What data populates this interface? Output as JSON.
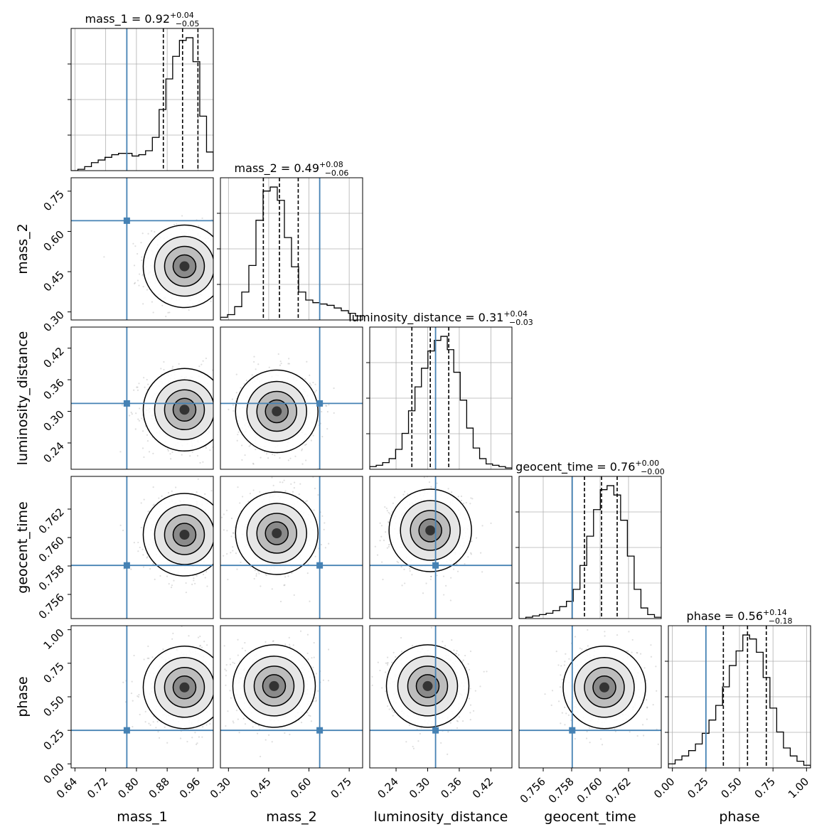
{
  "chart_data": {
    "type": "corner",
    "colors": {
      "truth": "#4682b4",
      "hist": "#000000",
      "grid": "#b0b0b0"
    },
    "parameters": [
      {
        "name": "mass_1",
        "xlabel": "mass_1",
        "title_value": "0.92",
        "title_upper": "+0.04",
        "title_lower": "−0.05",
        "range": [
          0.63,
          1.0
        ],
        "ticks": [
          0.64,
          0.72,
          0.8,
          0.88,
          0.96
        ],
        "tick_labels": [
          "0.64",
          "0.72",
          "0.80",
          "0.88",
          "0.96"
        ],
        "truth": 0.775,
        "quantiles": [
          0.87,
          0.92,
          0.96
        ],
        "hist_counts": [
          0.0,
          0.01,
          0.03,
          0.06,
          0.08,
          0.1,
          0.12,
          0.13,
          0.13,
          0.11,
          0.12,
          0.15,
          0.25,
          0.46,
          0.69,
          0.86,
          0.98,
          1.0,
          0.82,
          0.41,
          0.14
        ],
        "hist_ylim": [
          0,
          1.07
        ]
      },
      {
        "name": "mass_2",
        "xlabel": "mass_2",
        "title_value": "0.49",
        "title_upper": "+0.08",
        "title_lower": "−0.06",
        "range": [
          0.27,
          0.8
        ],
        "ticks": [
          0.3,
          0.45,
          0.6,
          0.75
        ],
        "tick_labels": [
          "0.30",
          "0.45",
          "0.60",
          "0.75"
        ],
        "truth": 0.64,
        "quantiles": [
          0.43,
          0.49,
          0.56
        ],
        "hist_counts": [
          0.02,
          0.04,
          0.1,
          0.21,
          0.41,
          0.75,
          0.97,
          1.0,
          0.9,
          0.62,
          0.4,
          0.21,
          0.15,
          0.13,
          0.12,
          0.11,
          0.09,
          0.07,
          0.05,
          0.03
        ],
        "hist_ylim": [
          0,
          1.07
        ]
      },
      {
        "name": "luminosity_distance",
        "xlabel": "luminosity_distance",
        "title_value": "0.31",
        "title_upper": "+0.04",
        "title_lower": "−0.03",
        "range": [
          0.19,
          0.46
        ],
        "ticks": [
          0.24,
          0.3,
          0.36,
          0.42
        ],
        "tick_labels": [
          "0.24",
          "0.30",
          "0.36",
          "0.42"
        ],
        "truth": 0.315,
        "quantiles": [
          0.27,
          0.305,
          0.34
        ],
        "hist_counts": [
          0.02,
          0.03,
          0.05,
          0.08,
          0.15,
          0.27,
          0.44,
          0.62,
          0.76,
          0.89,
          0.97,
          1.0,
          0.9,
          0.73,
          0.52,
          0.31,
          0.16,
          0.08,
          0.04,
          0.03,
          0.02,
          0.01
        ],
        "hist_ylim": [
          0,
          1.07
        ]
      },
      {
        "name": "geocent_time",
        "xlabel": "geocent_time",
        "title_value": "0.76",
        "title_upper": "+0.00",
        "title_lower": "−0.00",
        "range": [
          0.7543,
          0.7643
        ],
        "ticks": [
          0.756,
          0.758,
          0.76,
          0.762
        ],
        "tick_labels": [
          "0.756",
          "0.758",
          "0.760",
          "0.762"
        ],
        "truth": 0.75804,
        "quantiles": [
          0.7589,
          0.7601,
          0.7612
        ],
        "hist_counts": [
          0.0,
          0.01,
          0.02,
          0.03,
          0.04,
          0.06,
          0.09,
          0.13,
          0.22,
          0.4,
          0.62,
          0.82,
          0.97,
          1.0,
          0.93,
          0.74,
          0.47,
          0.22,
          0.08,
          0.03,
          0.01
        ],
        "hist_ylim": [
          0,
          1.07
        ]
      },
      {
        "name": "phase",
        "xlabel": "phase",
        "title_value": "0.56",
        "title_upper": "+0.14",
        "title_lower": "−0.18",
        "range": [
          -0.03,
          1.03
        ],
        "ticks": [
          0.0,
          0.25,
          0.5,
          0.75,
          1.0
        ],
        "tick_labels": [
          "0.00",
          "0.25",
          "0.50",
          "0.75",
          "1.00"
        ],
        "truth": 0.25,
        "quantiles": [
          0.38,
          0.56,
          0.7
        ],
        "hist_counts": [
          0.03,
          0.06,
          0.09,
          0.13,
          0.18,
          0.26,
          0.36,
          0.47,
          0.61,
          0.77,
          0.88,
          1.0,
          0.97,
          0.87,
          0.68,
          0.45,
          0.27,
          0.15,
          0.09,
          0.05,
          0.02
        ],
        "hist_ylim": [
          0,
          1.07
        ]
      }
    ],
    "pair_means": [
      [
        1,
        0,
        0.925,
        0.47
      ],
      [
        2,
        0,
        0.925,
        0.303
      ],
      [
        2,
        1,
        0.48,
        0.3
      ],
      [
        3,
        0,
        0.925,
        0.7602
      ],
      [
        3,
        1,
        0.48,
        0.7603
      ],
      [
        3,
        2,
        0.305,
        0.7605
      ],
      [
        4,
        0,
        0.925,
        0.57
      ],
      [
        4,
        1,
        0.47,
        0.58
      ],
      [
        4,
        2,
        0.3,
        0.58
      ],
      [
        4,
        3,
        0.7603,
        0.57
      ]
    ]
  }
}
